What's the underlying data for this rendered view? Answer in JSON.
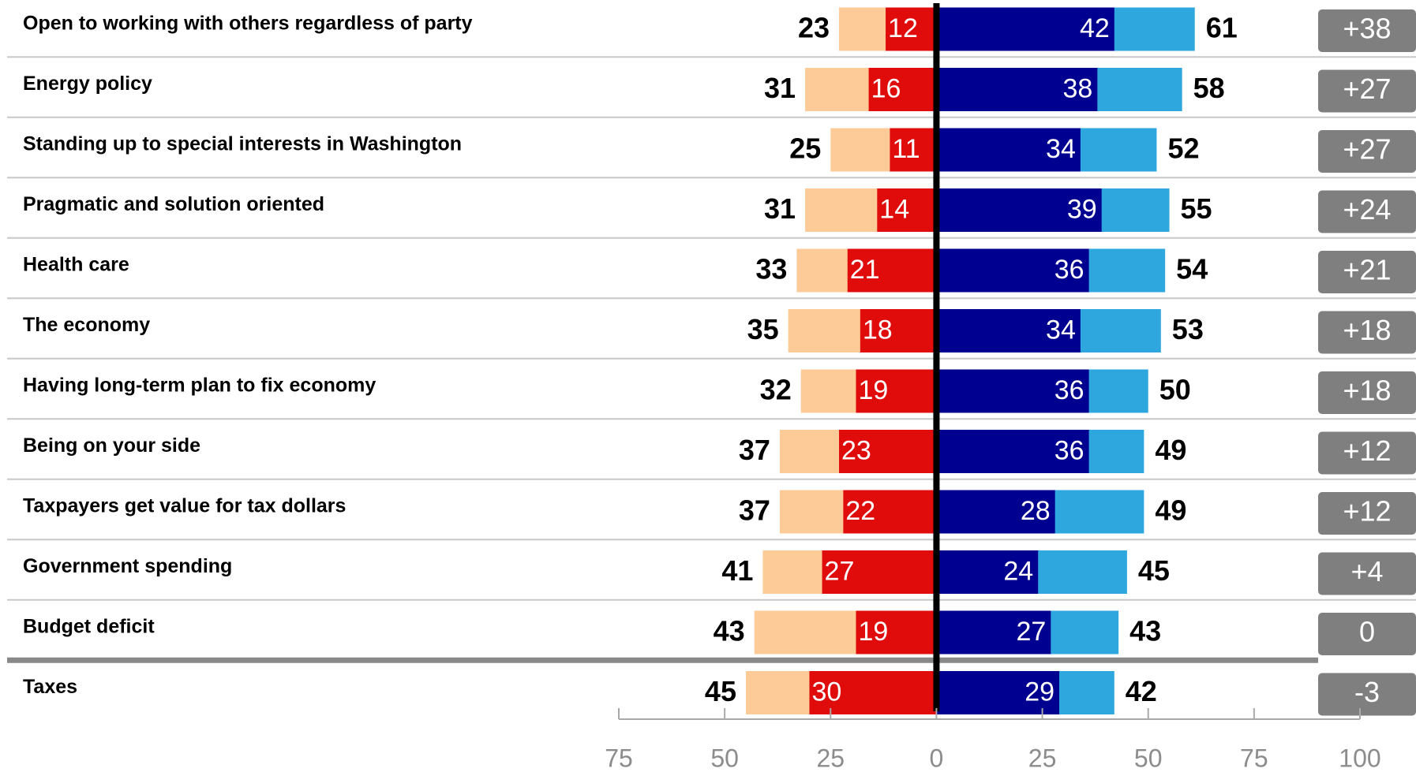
{
  "chart_data": {
    "type": "diverging_bar",
    "categories": [
      "Open to working with others regardless of party",
      "Energy policy",
      "Standing up to special interests in Washington",
      "Pragmatic and solution oriented",
      "Health care",
      "The economy",
      "Having long-term plan to fix economy",
      "Being on your side",
      "Taxpayers get value for tax dollars",
      "Government spending",
      "Budget deficit",
      "Taxes"
    ],
    "series": [
      {
        "direction": "left",
        "color": "#fdcb98",
        "label_style": "outside",
        "values": [
          23,
          31,
          25,
          31,
          33,
          35,
          32,
          37,
          37,
          41,
          43,
          45
        ]
      },
      {
        "direction": "left",
        "color": "#e00c0c",
        "label_style": "inside",
        "values": [
          12,
          16,
          11,
          14,
          21,
          18,
          19,
          23,
          22,
          27,
          19,
          30
        ]
      },
      {
        "direction": "right",
        "color": "#2ea7de",
        "label_style": "outside",
        "values": [
          61,
          58,
          52,
          55,
          54,
          53,
          50,
          49,
          49,
          45,
          43,
          42
        ]
      },
      {
        "direction": "right",
        "color": "#000090",
        "label_style": "inside",
        "values": [
          42,
          38,
          34,
          39,
          36,
          34,
          36,
          36,
          28,
          24,
          27,
          29
        ]
      }
    ],
    "net": {
      "color": "#7f7f7f",
      "values": [
        38,
        27,
        27,
        24,
        21,
        18,
        18,
        12,
        12,
        4,
        0,
        -3
      ],
      "value_labels": [
        "+38",
        "+27",
        "+27",
        "+24",
        "+21",
        "+18",
        "+18",
        "+12",
        "+12",
        "+4",
        "0",
        "-3"
      ]
    },
    "xlim": [
      -75,
      100
    ],
    "xticks": [
      {
        "value": -75,
        "label": "75"
      },
      {
        "value": -50,
        "label": "50"
      },
      {
        "value": -25,
        "label": "25"
      },
      0,
      25,
      50,
      75,
      100
    ]
  }
}
